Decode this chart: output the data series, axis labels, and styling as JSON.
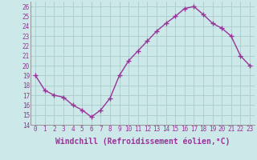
{
  "x": [
    0,
    1,
    2,
    3,
    4,
    5,
    6,
    7,
    8,
    9,
    10,
    11,
    12,
    13,
    14,
    15,
    16,
    17,
    18,
    19,
    20,
    21,
    22,
    23
  ],
  "y": [
    19.0,
    17.5,
    17.0,
    16.8,
    16.0,
    15.5,
    14.8,
    15.5,
    16.7,
    19.0,
    20.5,
    21.5,
    22.5,
    23.5,
    24.3,
    25.0,
    25.8,
    26.0,
    25.2,
    24.3,
    23.8,
    23.0,
    21.0,
    20.0
  ],
  "line_color": "#993399",
  "marker": "+",
  "marker_size": 4,
  "bg_color": "#cce8e8",
  "grid_color": "#aacccc",
  "xlabel": "Windchill (Refroidissement éolien,°C)",
  "xlabel_fontsize": 7,
  "tick_label_color": "#993399",
  "ylim": [
    14,
    26.5
  ],
  "yticks": [
    14,
    15,
    16,
    17,
    18,
    19,
    20,
    21,
    22,
    23,
    24,
    25,
    26
  ],
  "xticks": [
    0,
    1,
    2,
    3,
    4,
    5,
    6,
    7,
    8,
    9,
    10,
    11,
    12,
    13,
    14,
    15,
    16,
    17,
    18,
    19,
    20,
    21,
    22,
    23
  ],
  "tick_fontsize": 5.5,
  "line_width": 1.0,
  "marker_edge_width": 1.0
}
